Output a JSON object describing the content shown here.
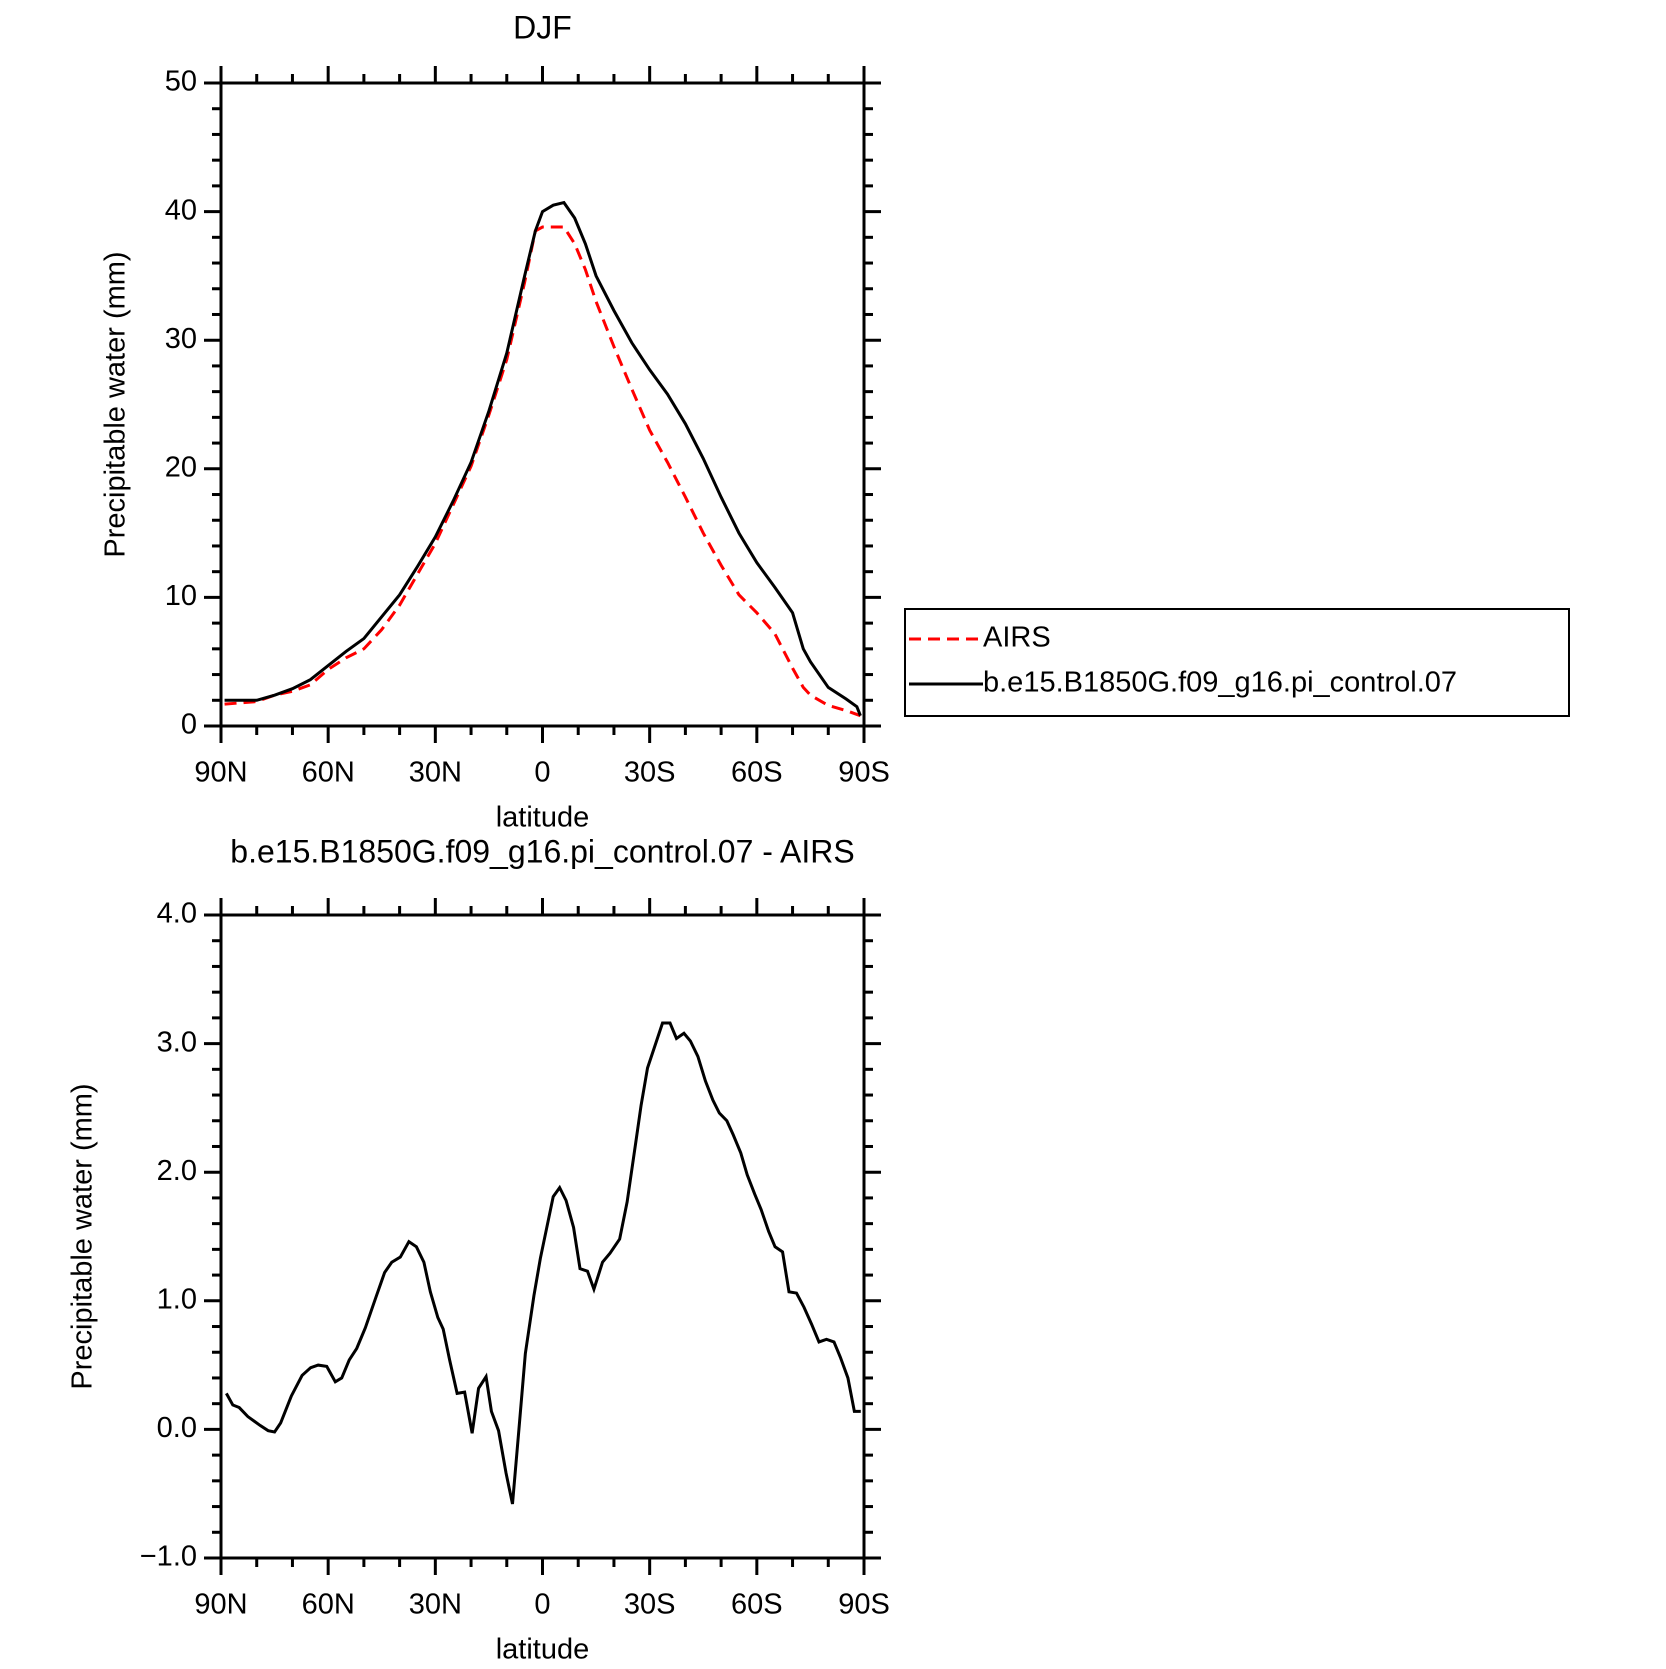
{
  "chart_data": [
    {
      "type": "line",
      "title": "DJF",
      "x_label": "latitude",
      "y_label": "Precipitable water (mm)",
      "xlim": [
        90,
        -90
      ],
      "xticks": [
        {
          "value": 90,
          "label": "90N"
        },
        {
          "value": 60,
          "label": "60N"
        },
        {
          "value": 30,
          "label": "30N"
        },
        0,
        {
          "value": -30,
          "label": "30S"
        },
        {
          "value": -60,
          "label": "60S"
        },
        {
          "value": -90,
          "label": "90S"
        }
      ],
      "ylim": [
        0,
        50
      ],
      "yticks": [
        0,
        10,
        20,
        30,
        40,
        50
      ],
      "legend": "outside-right",
      "x": [
        89,
        80,
        75,
        70,
        65,
        60,
        55,
        50,
        45,
        40,
        35,
        30,
        25,
        20,
        15,
        10,
        5,
        2,
        0,
        -3,
        -6,
        -9,
        -12,
        -15,
        -20,
        -25,
        -30,
        -35,
        -40,
        -45,
        -50,
        -55,
        -60,
        -65,
        -70,
        -73,
        -75,
        -80,
        -85,
        -88,
        -89
      ],
      "series": [
        {
          "name": "AIRS",
          "color": "#ff0000",
          "dash": true,
          "values": [
            1.7,
            1.9,
            2.4,
            2.7,
            3.2,
            4.4,
            5.3,
            6.0,
            7.5,
            9.4,
            11.8,
            14.2,
            17.2,
            20.2,
            24.2,
            28.5,
            34.5,
            38.5,
            38.8,
            38.8,
            38.8,
            37.5,
            35.5,
            33,
            29.5,
            26.2,
            23,
            20.5,
            17.8,
            15,
            12.5,
            10.2,
            8.8,
            7.2,
            4.5,
            3,
            2.4,
            1.6,
            1.2,
            0.9,
            0.8
          ]
        },
        {
          "name": "b.e15.B1850G.f09_g16.pi_control.07",
          "color": "#000000",
          "dash": false,
          "values": [
            2.0,
            2.0,
            2.4,
            2.9,
            3.6,
            4.7,
            5.8,
            6.8,
            8.5,
            10.2,
            12.4,
            14.7,
            17.5,
            20.5,
            24.5,
            29,
            35,
            38.5,
            40,
            40.5,
            40.7,
            39.5,
            37.5,
            35,
            32.3,
            29.8,
            27.7,
            25.8,
            23.5,
            20.8,
            17.8,
            15,
            12.7,
            10.8,
            8.8,
            6,
            5,
            3,
            2.1,
            1.5,
            0.8
          ]
        }
      ]
    },
    {
      "type": "line",
      "title": "b.e15.B1850G.f09_g16.pi_control.07 - AIRS",
      "x_label": "latitude",
      "y_label": "Precipitable water (mm)",
      "xlim": [
        90,
        -90
      ],
      "xticks": [
        {
          "value": 90,
          "label": "90N"
        },
        {
          "value": 60,
          "label": "60N"
        },
        {
          "value": 30,
          "label": "30N"
        },
        0,
        {
          "value": -30,
          "label": "30S"
        },
        {
          "value": -60,
          "label": "60S"
        },
        {
          "value": -90,
          "label": "90S"
        }
      ],
      "ylim": [
        -1,
        4
      ],
      "yticks": [
        {
          "value": -1,
          "label": "−1.0"
        },
        {
          "value": 0,
          "label": "0.0"
        },
        {
          "value": 1,
          "label": "1.0"
        },
        {
          "value": 2,
          "label": "2.0"
        },
        {
          "value": 3,
          "label": "3.0"
        },
        {
          "value": 4,
          "label": "4.0"
        }
      ],
      "x": [
        88.5,
        86.7,
        84.9,
        82.5,
        79,
        76.8,
        75,
        73.3,
        70.3,
        67.3,
        64.9,
        62.8,
        60.4,
        58,
        56.2,
        54.1,
        52,
        49.6,
        46.6,
        44.2,
        42.2,
        39.8,
        37.4,
        35.3,
        33.2,
        31.4,
        29.3,
        27.8,
        26,
        23.9,
        21.8,
        19.7,
        17.9,
        15.8,
        14.3,
        12.3,
        10.2,
        8.4,
        6.6,
        4.8,
        2.4,
        0.6,
        -1.2,
        -3,
        -4.8,
        -6.6,
        -8.7,
        -10.5,
        -12.6,
        -14.4,
        -16.8,
        -18.9,
        -21.6,
        -23.7,
        -26.1,
        -27.6,
        -29.4,
        -31.2,
        -33.6,
        -35.7,
        -37.5,
        -39.6,
        -41.4,
        -43.5,
        -45.6,
        -47.7,
        -49.5,
        -51.6,
        -53.4,
        -55.5,
        -57.3,
        -59.4,
        -61.2,
        -63.3,
        -65.1,
        -67.2,
        -69,
        -71.1,
        -73.2,
        -75.3,
        -77.4,
        -79.5,
        -81.6,
        -83.4,
        -85.5,
        -87.3,
        -89.1
      ],
      "series": [
        {
          "color": "#000000",
          "dash": false,
          "values": [
            0.28,
            0.19,
            0.17,
            0.1,
            0.03,
            -0.01,
            -0.02,
            0.05,
            0.26,
            0.42,
            0.48,
            0.5,
            0.49,
            0.37,
            0.4,
            0.54,
            0.63,
            0.79,
            1.03,
            1.22,
            1.3,
            1.34,
            1.46,
            1.42,
            1.3,
            1.07,
            0.87,
            0.78,
            0.54,
            0.28,
            0.29,
            -0.03,
            0.32,
            0.41,
            0.14,
            -0.01,
            -0.34,
            -0.58,
            0.0,
            0.59,
            1.04,
            1.33,
            1.57,
            1.81,
            1.88,
            1.78,
            1.57,
            1.25,
            1.23,
            1.09,
            1.3,
            1.37,
            1.48,
            1.77,
            2.23,
            2.52,
            2.81,
            2.96,
            3.16,
            3.16,
            3.04,
            3.08,
            3.02,
            2.9,
            2.71,
            2.56,
            2.46,
            2.4,
            2.29,
            2.15,
            1.98,
            1.83,
            1.71,
            1.54,
            1.42,
            1.38,
            1.07,
            1.06,
            0.95,
            0.82,
            0.68,
            0.7,
            0.68,
            0.56,
            0.4,
            0.14,
            0.14
          ]
        }
      ]
    }
  ]
}
